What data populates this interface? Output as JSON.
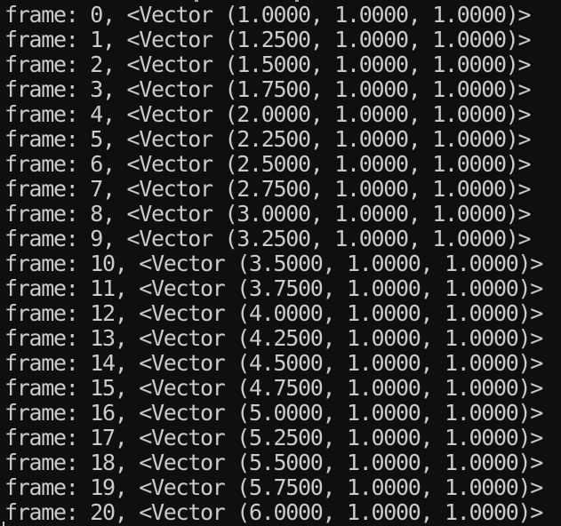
{
  "colors": {
    "background": "#0f0f0f",
    "text": "#cbcbcb"
  },
  "console": {
    "lines": [
      "frame: 0, <Vector (1.0000, 1.0000, 1.0000)>",
      "frame: 1, <Vector (1.2500, 1.0000, 1.0000)>",
      "frame: 2, <Vector (1.5000, 1.0000, 1.0000)>",
      "frame: 3, <Vector (1.7500, 1.0000, 1.0000)>",
      "frame: 4, <Vector (2.0000, 1.0000, 1.0000)>",
      "frame: 5, <Vector (2.2500, 1.0000, 1.0000)>",
      "frame: 6, <Vector (2.5000, 1.0000, 1.0000)>",
      "frame: 7, <Vector (2.7500, 1.0000, 1.0000)>",
      "frame: 8, <Vector (3.0000, 1.0000, 1.0000)>",
      "frame: 9, <Vector (3.2500, 1.0000, 1.0000)>",
      "frame: 10, <Vector (3.5000, 1.0000, 1.0000)>",
      "frame: 11, <Vector (3.7500, 1.0000, 1.0000)>",
      "frame: 12, <Vector (4.0000, 1.0000, 1.0000)>",
      "frame: 13, <Vector (4.2500, 1.0000, 1.0000)>",
      "frame: 14, <Vector (4.5000, 1.0000, 1.0000)>",
      "frame: 15, <Vector (4.7500, 1.0000, 1.0000)>",
      "frame: 16, <Vector (5.0000, 1.0000, 1.0000)>",
      "frame: 17, <Vector (5.2500, 1.0000, 1.0000)>",
      "frame: 18, <Vector (5.5000, 1.0000, 1.0000)>",
      "frame: 19, <Vector (5.7500, 1.0000, 1.0000)>",
      "frame: 20, <Vector (6.0000, 1.0000, 1.0000)>"
    ]
  }
}
